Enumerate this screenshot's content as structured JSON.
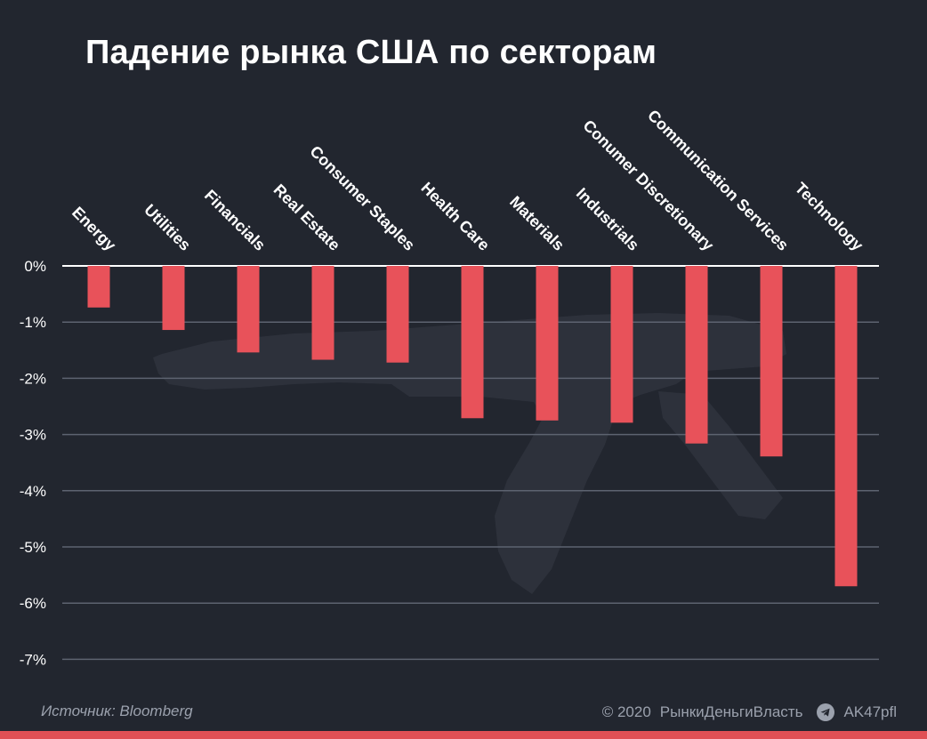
{
  "header": {
    "title": "Падение рынка США по секторам"
  },
  "footer": {
    "source": "Источник: Bloomberg",
    "copyright": "© 2020",
    "brand": "РынкиДеньгиВласть",
    "channel": "AK47pfl",
    "channel_icon": "telegram-icon"
  },
  "colors": {
    "background": "#22262f",
    "bar": "#e8525a",
    "grid": "#5d6370",
    "zero_line": "#ffffff",
    "text": "#ffffff",
    "muted": "#9ba1ad",
    "accent_strip": "#e05055"
  },
  "chart_data": {
    "type": "bar",
    "title": "Падение рынка США по секторам",
    "xlabel": "",
    "ylabel": "",
    "categories": [
      "Energy",
      "Utilities",
      "Financials",
      "Real Estate",
      "Consumer Staples",
      "Health Care",
      "Materials",
      "Industrials",
      "Conumer Discretionary",
      "Communication Services",
      "Technology"
    ],
    "values": [
      -0.74,
      -1.14,
      -1.54,
      -1.67,
      -1.72,
      -2.71,
      -2.75,
      -2.79,
      -3.16,
      -3.39,
      -5.7
    ],
    "ylim": [
      -7,
      0
    ],
    "yticks": [
      {
        "value": 0,
        "label": "0%"
      },
      {
        "value": -1,
        "label": "-1%"
      },
      {
        "value": -2,
        "label": "-2%"
      },
      {
        "value": -3,
        "label": "-3%"
      },
      {
        "value": -4,
        "label": "-4%"
      },
      {
        "value": -5,
        "label": "-5%"
      },
      {
        "value": -6,
        "label": "-6%"
      },
      {
        "value": -7,
        "label": "-7%"
      }
    ],
    "grid": true,
    "category_label_position": "top-rotated"
  }
}
